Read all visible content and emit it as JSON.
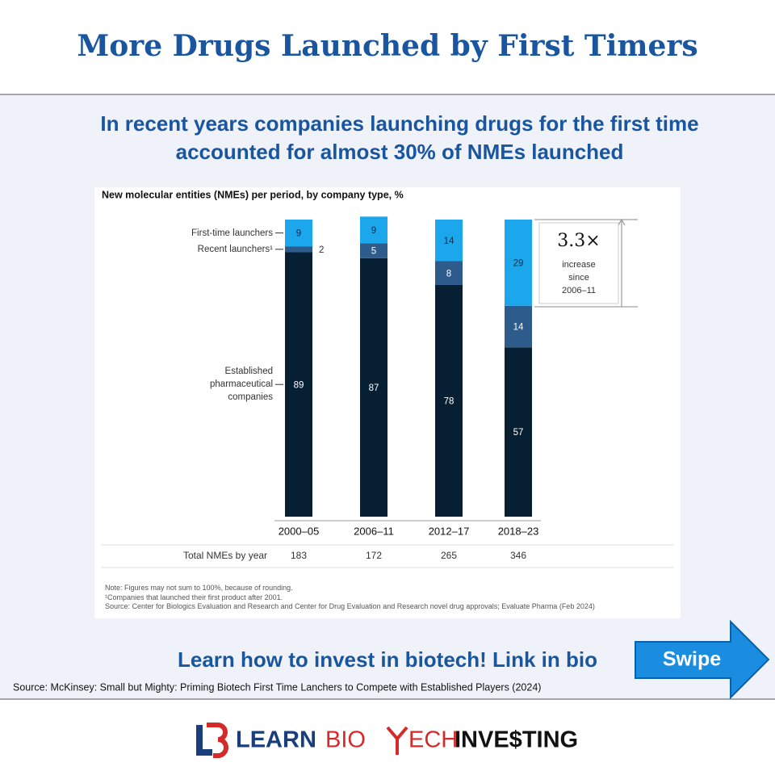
{
  "header": {
    "title": "More Drugs Launched by First Timers"
  },
  "subtitle": "In recent years companies launching drugs for the first time accounted for almost 30% of NMEs launched",
  "chart_data": {
    "type": "bar",
    "stacked": true,
    "title": "New molecular entities (NMEs) per period, by company type, %",
    "categories": [
      "2000–05",
      "2006–11",
      "2012–17",
      "2018–23"
    ],
    "series": [
      {
        "name": "Established pharmaceutical companies",
        "color": "#061f33",
        "values": [
          89,
          87,
          78,
          57
        ]
      },
      {
        "name": "Recent launchers¹",
        "color": "#2c5b8c",
        "values": [
          2,
          5,
          8,
          14
        ]
      },
      {
        "name": "First-time launchers",
        "color": "#1ca6ec",
        "values": [
          9,
          9,
          14,
          29
        ]
      }
    ],
    "ylim": [
      0,
      100
    ],
    "totals": {
      "label": "Total NMEs by year",
      "values": [
        183,
        172,
        265,
        346
      ]
    },
    "annotation": {
      "value": "3.3×",
      "text": "increase since 2006–11"
    },
    "notes": [
      "Note: Figures may not sum to 100%, because of rounding.",
      "¹Companies that launched their first product after 2001.",
      "Source: Center for Biologics Evaluation and Research and Center for Drug Evaluation and Research novel drug approvals; Evaluate Pharma (Feb 2024)"
    ]
  },
  "cta": "Learn how to invest in biotech! Link in bio",
  "button": "Swipe",
  "source": "Source: McKinsey: Small but Mighty: Priming Biotech First Time Lanchers to Compete with Established Players (2024)",
  "logo": [
    "LEARN",
    "BIO",
    "ECH",
    "INVE$TING"
  ]
}
